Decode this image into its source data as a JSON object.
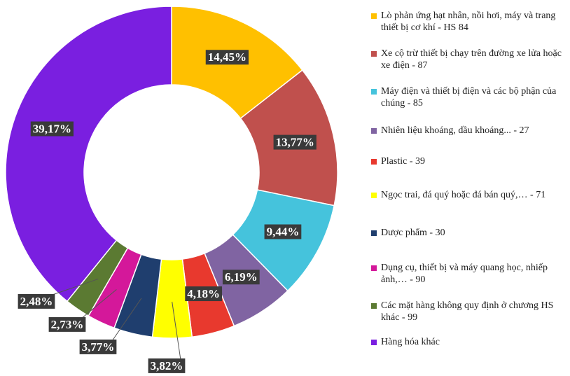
{
  "chart_data": {
    "type": "donut",
    "categories": [
      "Lò phản ứng hạt nhân, nồi hơi, máy và trang thiết bị cơ khí - HS 84",
      "Xe cộ trừ thiết bị chạy trên đường xe lửa hoặc xe điện - 87",
      "Máy điện và thiết bị điện và các bộ phận của chúng - 85",
      "Nhiên liệu khoáng, dầu khoáng... - 27",
      "Plastic - 39",
      "Ngọc trai, đá quý hoặc đá bán quý,… - 71",
      "Dược phẩm - 30",
      "Dụng cụ, thiết bị và máy quang học, nhiếp ảnh,… - 90",
      "Các mặt hàng không quy định ở chương HS khác - 99",
      "Hàng hóa khác"
    ],
    "values": [
      14.45,
      13.77,
      9.44,
      6.19,
      4.18,
      3.82,
      3.77,
      2.73,
      2.48,
      39.17
    ],
    "value_labels": [
      "14,45%",
      "13,77%",
      "9,44%",
      "6,19%",
      "4,18%",
      "3,82%",
      "3,77%",
      "2,73%",
      "2,48%",
      "39,17%"
    ],
    "colors": [
      "#FFC000",
      "#C0504D",
      "#45C3DC",
      "#8064A2",
      "#E8392E",
      "#FFFF00",
      "#1F3E6E",
      "#D4189A",
      "#5B7A32",
      "#7A1FE0"
    ],
    "legend": "right"
  }
}
